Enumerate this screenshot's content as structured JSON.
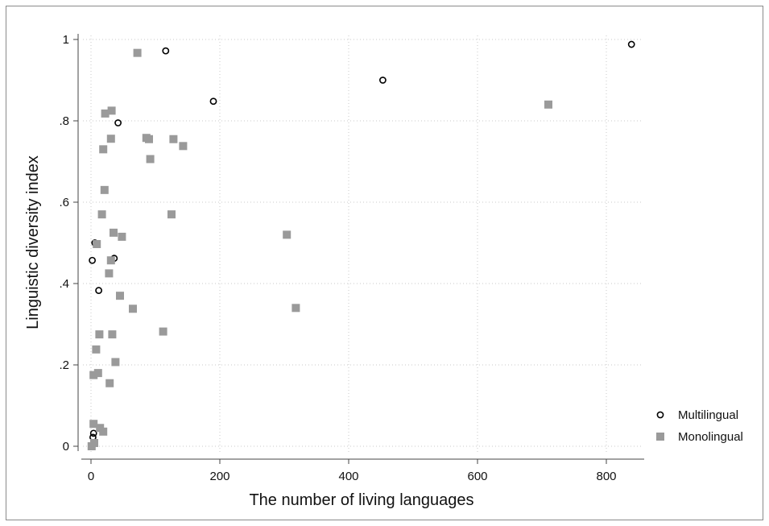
{
  "chart_data": {
    "type": "scatter",
    "title": "",
    "xlabel": "The number of living languages",
    "ylabel": "Linguistic diversity index",
    "xlim": [
      0,
      840
    ],
    "ylim": [
      0,
      1
    ],
    "x_ticks": [
      0,
      200,
      400,
      600,
      800
    ],
    "x_tick_labels": [
      "0",
      "200",
      "400",
      "600",
      "800"
    ],
    "y_ticks": [
      0,
      0.2,
      0.4,
      0.6,
      0.8,
      1
    ],
    "y_tick_labels": [
      "0",
      ".2",
      ".4",
      ".6",
      ".8",
      "1"
    ],
    "grid": true,
    "legend_position": "right",
    "series": [
      {
        "name": "Multilingual",
        "marker": "hollow-circle",
        "color": "#000000",
        "points": [
          [
            116,
            0.972
          ],
          [
            839,
            0.988
          ],
          [
            453,
            0.9
          ],
          [
            190,
            0.848
          ],
          [
            42,
            0.795
          ],
          [
            6,
            0.5
          ],
          [
            36,
            0.462
          ],
          [
            2,
            0.457
          ],
          [
            12,
            0.383
          ],
          [
            4,
            0.032
          ],
          [
            3,
            0.022
          ]
        ]
      },
      {
        "name": "Monolingual",
        "marker": "square",
        "color": "#9a9a9a",
        "points": [
          [
            72,
            0.967
          ],
          [
            32,
            0.825
          ],
          [
            22,
            0.818
          ],
          [
            710,
            0.84
          ],
          [
            86,
            0.758
          ],
          [
            90,
            0.755
          ],
          [
            31,
            0.756
          ],
          [
            128,
            0.755
          ],
          [
            143,
            0.738
          ],
          [
            19,
            0.73
          ],
          [
            92,
            0.706
          ],
          [
            21,
            0.63
          ],
          [
            17,
            0.57
          ],
          [
            125,
            0.57
          ],
          [
            35,
            0.525
          ],
          [
            304,
            0.52
          ],
          [
            48,
            0.515
          ],
          [
            9,
            0.497
          ],
          [
            31,
            0.457
          ],
          [
            28,
            0.425
          ],
          [
            45,
            0.37
          ],
          [
            65,
            0.338
          ],
          [
            318,
            0.34
          ],
          [
            13,
            0.275
          ],
          [
            33,
            0.275
          ],
          [
            112,
            0.282
          ],
          [
            8,
            0.238
          ],
          [
            38,
            0.207
          ],
          [
            11,
            0.18
          ],
          [
            4,
            0.175
          ],
          [
            29,
            0.155
          ],
          [
            4,
            0.055
          ],
          [
            14,
            0.045
          ],
          [
            19,
            0.036
          ],
          [
            5,
            0.008
          ],
          [
            1,
            0.0
          ]
        ]
      }
    ]
  }
}
